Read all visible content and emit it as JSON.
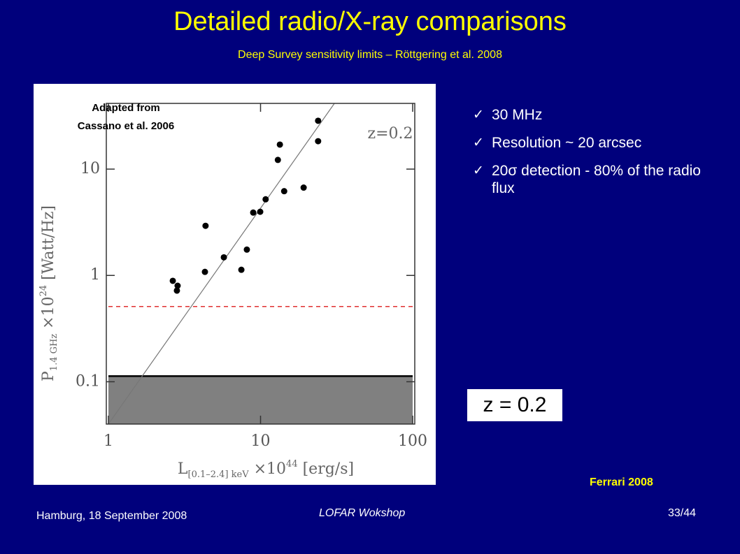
{
  "title": "Detailed radio/X-ray comparisons",
  "subtitle": "Deep Survey sensitivity limits – Röttgering et al. 2008",
  "bullets": [
    "30 MHz",
    "Resolution ~ 20 arcsec",
    "20σ detection - 80% of the radio flux"
  ],
  "redshift_box": "z = 0.2",
  "credit": "Ferrari 2008",
  "footer": {
    "left": "Hamburg, 18 September 2008",
    "center": "LOFAR Wokshop",
    "right": "33/44"
  },
  "chart_data": {
    "type": "scatter",
    "annotation": [
      "Adapted from",
      "Cassano et al. 2006"
    ],
    "inset_label": "z=0.2",
    "xlabel": [
      "L",
      "[0.1–2.4] keV",
      " ×10",
      "44",
      " [erg/s]"
    ],
    "ylabel": [
      "P",
      "1.4 GHz",
      " ×10",
      "24",
      " [Watt/Hz]"
    ],
    "xlog": true,
    "ylog": true,
    "xlim": [
      1,
      100
    ],
    "ylim": [
      0.04,
      41.5
    ],
    "xticks": [
      1,
      10,
      100
    ],
    "yticks": [
      0.1,
      1,
      10
    ],
    "x": [
      2.65,
      2.85,
      2.82,
      4.31,
      4.35,
      5.74,
      7.48,
      8.13,
      8.95,
      9.95,
      10.8,
      13.0,
      13.4,
      14.3,
      19.2,
      23.9,
      23.9
    ],
    "values": [
      0.89,
      0.8,
      0.72,
      1.08,
      2.93,
      1.48,
      1.13,
      1.75,
      3.9,
      3.97,
      5.2,
      12.2,
      17,
      6.2,
      6.7,
      28.5,
      18.3
    ],
    "color": "#000000",
    "fit": {
      "x": [
        1,
        30.6
      ],
      "values": [
        0.04,
        41.5
      ],
      "color": "#777777"
    },
    "hlines": [
      {
        "value": 0.51,
        "color": "#e03030",
        "style": "dashed",
        "shade": false
      },
      {
        "value": 0.113,
        "color": "#000000",
        "style": "solid",
        "shade": true
      }
    ]
  }
}
